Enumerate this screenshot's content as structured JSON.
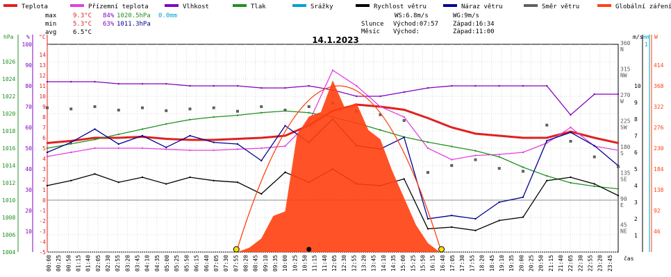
{
  "legend": [
    {
      "name": "Teplota",
      "color": "#e02020"
    },
    {
      "name": "Přízemní teplota",
      "color": "#e040e0"
    },
    {
      "name": "Vlhkost",
      "color": "#8000c0"
    },
    {
      "name": "Tlak",
      "color": "#209020"
    },
    {
      "name": "Srážky",
      "color": "#00a0d0"
    },
    {
      "name": "Rychlost větru",
      "color": "#000000"
    },
    {
      "name": "Náraz větru",
      "color": "#000090"
    },
    {
      "name": "Směr větru",
      "color": "#606060"
    },
    {
      "name": "Globální záření",
      "color": "#ff4010"
    }
  ],
  "stats": {
    "max_label": "max",
    "max_temp": "9.3°C",
    "max_hum": "84%",
    "max_press": "1020.5hPa",
    "max_rain": "0.0mm",
    "min_label": "min",
    "min_temp": "5.3°C",
    "min_hum": "63%",
    "min_press": "1011.3hPa",
    "avg_label": "avg",
    "avg_temp": "6.5°C"
  },
  "summary": {
    "ws": "WS:6.8m/s",
    "wg": "WG:9m/s",
    "sun_label": "Slunce",
    "sunrise": "Východ:07:57",
    "sunset": "Západ:16:34",
    "moon_label": "Měsíc",
    "moonrise": "Východ:",
    "moonset": "Západ:11:00"
  },
  "chart_data": {
    "type": "line",
    "title": "14.1.2023",
    "xlabel": "čas",
    "x_ticks": [
      "00:00",
      "00:25",
      "00:50",
      "01:15",
      "01:40",
      "02:05",
      "02:30",
      "02:55",
      "03:20",
      "03:45",
      "04:10",
      "04:35",
      "05:00",
      "05:25",
      "05:50",
      "06:15",
      "06:40",
      "07:05",
      "07:30",
      "07:55",
      "08:20",
      "08:45",
      "09:10",
      "09:35",
      "10:00",
      "10:25",
      "10:50",
      "11:15",
      "11:40",
      "12:05",
      "12:30",
      "12:55",
      "13:20",
      "13:45",
      "14:10",
      "14:35",
      "15:00",
      "15:25",
      "15:50",
      "16:15",
      "16:40",
      "17:05",
      "17:30",
      "17:55",
      "18:20",
      "18:45",
      "19:10",
      "19:35",
      "20:00",
      "20:25",
      "20:50",
      "21:15",
      "21:40",
      "22:05",
      "22:30",
      "22:55",
      "23:20",
      "23:45"
    ],
    "axes": {
      "hPa": {
        "unit": "hPa",
        "range": [
          1004,
          1028
        ],
        "ticks": [
          "1004",
          "1006",
          "1008",
          "1010",
          "1012",
          "1014",
          "1016",
          "1018",
          "1020",
          "1022",
          "1024",
          "1026"
        ]
      },
      "percent": {
        "unit": "%",
        "range": [
          0,
          100
        ],
        "ticks": [
          "10",
          "20",
          "30",
          "40",
          "50",
          "60",
          "70",
          "80",
          "90",
          "100"
        ]
      },
      "celsius": {
        "unit": "°C",
        "range": [
          -5,
          15
        ],
        "ticks": [
          "-5",
          "-4",
          "-3",
          "-2",
          "-1",
          "0",
          "1",
          "2",
          "3",
          "4",
          "5",
          "6",
          "7",
          "8",
          "9",
          "10",
          "11",
          "12",
          "13",
          "14"
        ]
      },
      "direction": {
        "ticks": [
          "45",
          "90",
          "135",
          "180",
          "225",
          "270",
          "315",
          "360"
        ],
        "compass": [
          "NE",
          "E",
          "SE",
          "S",
          "SW",
          "W",
          "NW",
          "N"
        ]
      },
      "ms": {
        "unit": "m/s",
        "ticks": [
          "1",
          "2",
          "3",
          "4",
          "5",
          "6",
          "7",
          "8",
          "9",
          "10"
        ]
      },
      "mm": {
        "unit": "mm",
        "ticks": [
          "1"
        ]
      },
      "W": {
        "unit": "W",
        "ticks": [
          "46",
          "92",
          "138",
          "184",
          "230",
          "276",
          "322",
          "368",
          "414"
        ]
      }
    },
    "series": [
      {
        "name": "Teplota",
        "axis": "celsius",
        "x": [
          0,
          1,
          2,
          3,
          4,
          5,
          6,
          7,
          8,
          9,
          10,
          11,
          12,
          13,
          14,
          15,
          16,
          17,
          18,
          19,
          20,
          21,
          22,
          23,
          24
        ],
        "values": [
          5.5,
          5.7,
          6.0,
          6.0,
          6.1,
          5.9,
          5.8,
          5.8,
          5.9,
          6.0,
          6.2,
          7.2,
          8.6,
          9.2,
          9.0,
          8.7,
          7.9,
          7.0,
          6.4,
          6.2,
          6.0,
          6.0,
          6.6,
          6.0,
          5.5
        ]
      },
      {
        "name": "Přízemní teplota",
        "axis": "celsius",
        "x": [
          0,
          1,
          2,
          3,
          4,
          5,
          6,
          7,
          8,
          9,
          10,
          11,
          12,
          13,
          14,
          15,
          16,
          17,
          18,
          19,
          20,
          21,
          22,
          23,
          24
        ],
        "values": [
          4.2,
          4.6,
          5.0,
          5.0,
          5.0,
          4.9,
          4.8,
          4.8,
          4.9,
          5.0,
          5.2,
          7.5,
          12.5,
          11.0,
          9.0,
          8.0,
          5.0,
          3.9,
          4.3,
          4.4,
          4.6,
          5.5,
          7.0,
          5.2,
          4.8
        ]
      },
      {
        "name": "Vlhkost",
        "axis": "percent",
        "x": [
          0,
          1,
          2,
          3,
          4,
          5,
          6,
          7,
          8,
          9,
          10,
          11,
          12,
          13,
          14,
          15,
          16,
          17,
          18,
          19,
          20,
          21,
          22,
          23,
          24
        ],
        "values": [
          82,
          82,
          82,
          81,
          81,
          81,
          80,
          80,
          80,
          79,
          79,
          80,
          78,
          75,
          75,
          77,
          79,
          80,
          80,
          80,
          80,
          80,
          66,
          76,
          76
        ]
      },
      {
        "name": "Tlak",
        "axis": "hPa",
        "x": [
          0,
          1,
          2,
          3,
          4,
          5,
          6,
          7,
          8,
          9,
          10,
          11,
          12,
          13,
          14,
          15,
          16,
          17,
          18,
          19,
          20,
          21,
          22,
          23,
          24
        ],
        "values": [
          1016.0,
          1016.5,
          1017.0,
          1017.6,
          1018.2,
          1018.8,
          1019.3,
          1019.6,
          1019.8,
          1020.1,
          1020.3,
          1020.1,
          1019.6,
          1018.9,
          1018.1,
          1017.3,
          1016.7,
          1016.2,
          1015.7,
          1015.0,
          1013.8,
          1012.8,
          1012.0,
          1011.6,
          1011.3
        ]
      },
      {
        "name": "Rychlost větru",
        "axis": "ms",
        "x": [
          0,
          1,
          2,
          3,
          4,
          5,
          6,
          7,
          8,
          9,
          10,
          11,
          12,
          13,
          14,
          15,
          16,
          17,
          18,
          19,
          20,
          21,
          22,
          23,
          24
        ],
        "values": [
          4.0,
          4.3,
          4.7,
          4.2,
          4.5,
          4.1,
          4.5,
          4.3,
          4.2,
          3.5,
          4.8,
          4.2,
          5.0,
          4.1,
          4.0,
          4.4,
          1.4,
          1.5,
          1.3,
          1.9,
          2.1,
          4.3,
          4.5,
          4.1,
          3.4
        ]
      },
      {
        "name": "Náraz větru",
        "axis": "ms",
        "x": [
          0,
          1,
          2,
          3,
          4,
          5,
          6,
          7,
          8,
          9,
          10,
          11,
          12,
          13,
          14,
          15,
          16,
          17,
          18,
          19,
          20,
          21,
          22,
          23,
          24
        ],
        "values": [
          6.0,
          6.6,
          7.4,
          6.5,
          7.0,
          6.3,
          7.0,
          6.6,
          6.5,
          5.5,
          7.6,
          6.6,
          8.0,
          6.4,
          6.2,
          6.9,
          2.0,
          2.2,
          2.0,
          3.0,
          3.3,
          6.7,
          7.2,
          6.4,
          5.2
        ]
      },
      {
        "name": "Směr větru",
        "axis": "direction",
        "x": [
          0,
          1,
          2,
          3,
          4,
          5,
          6,
          7,
          8,
          9,
          10,
          11,
          12,
          13,
          14,
          15,
          16,
          17,
          18,
          19,
          20,
          21,
          22,
          23,
          24
        ],
        "values": [
          250,
          248,
          252,
          246,
          250,
          245,
          248,
          250,
          244,
          252,
          246,
          252,
          258,
          244,
          238,
          228,
          138,
          150,
          160,
          145,
          140,
          220,
          192,
          165,
          148
        ]
      },
      {
        "name": "Globální záření",
        "axis": "W",
        "x": [
          8,
          8.5,
          9,
          9.5,
          10,
          10.5,
          11,
          11.5,
          12,
          12.5,
          13,
          13.5,
          14,
          14.5,
          15,
          15.5,
          16,
          16.5
        ],
        "values": [
          0,
          10,
          30,
          80,
          90,
          260,
          300,
          310,
          380,
          320,
          330,
          270,
          250,
          180,
          120,
          60,
          20,
          0
        ]
      }
    ],
    "grid": true,
    "legend_position": "top"
  }
}
